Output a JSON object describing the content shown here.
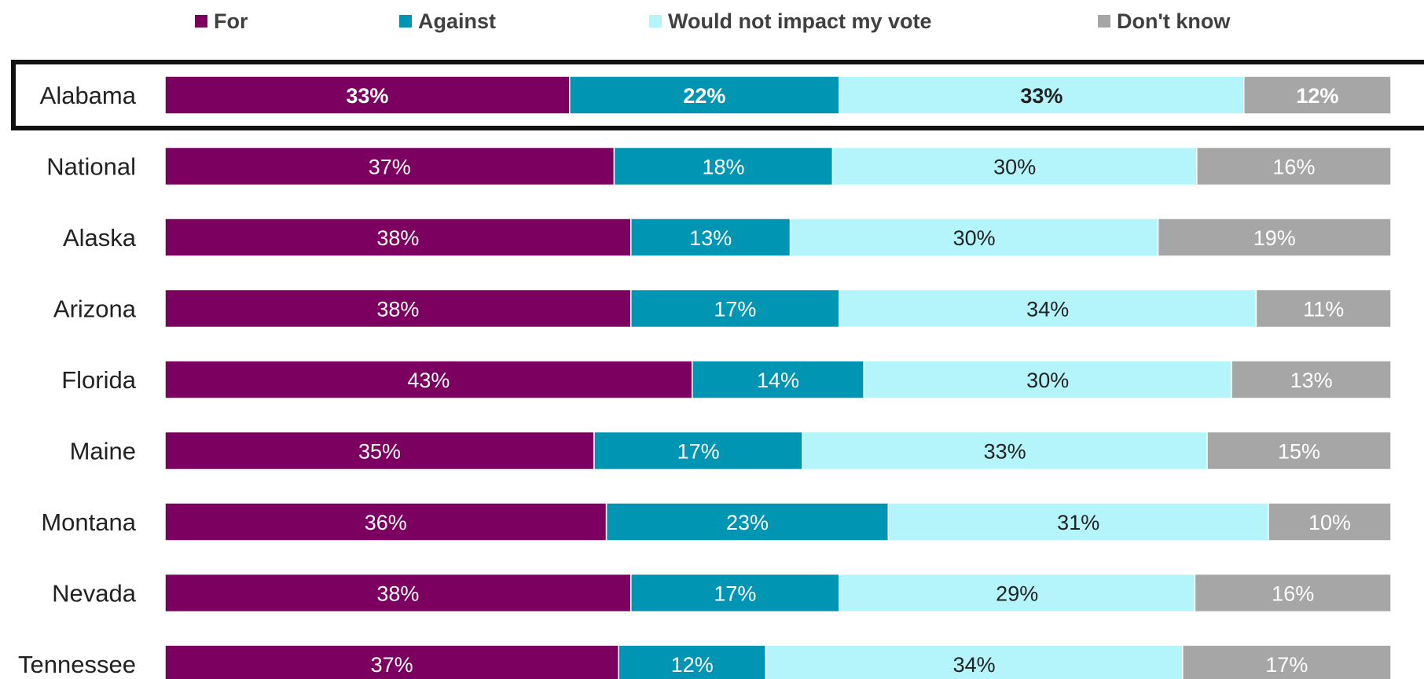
{
  "chart_data": {
    "type": "bar",
    "orientation": "horizontal",
    "stacked": "100%",
    "legend_position": "top",
    "highlighted_category": "Alabama",
    "categories": [
      "Alabama",
      "National",
      "Alaska",
      "Arizona",
      "Florida",
      "Maine",
      "Montana",
      "Nevada",
      "Tennessee"
    ],
    "series": [
      {
        "name": "For",
        "color": "#7b0060",
        "label_color": "#ffffff",
        "values": [
          33,
          37,
          38,
          38,
          43,
          35,
          36,
          38,
          37
        ],
        "labels": [
          "33%",
          "37%",
          "38%",
          "38%",
          "43%",
          "35%",
          "36%",
          "38%",
          "37%"
        ]
      },
      {
        "name": "Against",
        "color": "#0095b3",
        "label_color": "#ffffff",
        "values": [
          22,
          18,
          13,
          17,
          14,
          17,
          23,
          17,
          12
        ],
        "labels": [
          "22%",
          "18%",
          "13%",
          "17%",
          "14%",
          "17%",
          "23%",
          "17%",
          "12%"
        ]
      },
      {
        "name": "Would not impact my vote",
        "color": "#b3f5fb",
        "label_color": "#222222",
        "values": [
          33,
          30,
          30,
          34,
          30,
          33,
          31,
          29,
          34
        ],
        "labels": [
          "33%",
          "30%",
          "30%",
          "34%",
          "30%",
          "33%",
          "31%",
          "29%",
          "34%"
        ]
      },
      {
        "name": "Don't know",
        "color": "#a6a6a6",
        "label_color": "#ffffff",
        "values": [
          12,
          16,
          19,
          11,
          13,
          15,
          10,
          16,
          17
        ],
        "labels": [
          "12%",
          "16%",
          "19%",
          "11%",
          "13%",
          "15%",
          "10%",
          "16%",
          "17%"
        ]
      }
    ]
  }
}
